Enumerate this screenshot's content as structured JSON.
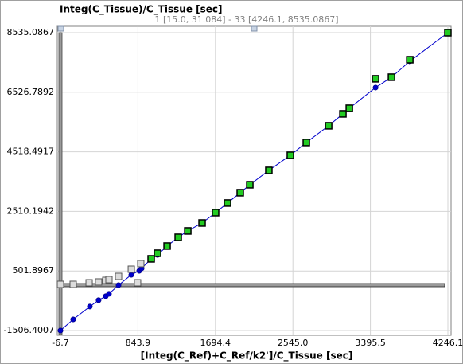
{
  "chart_data": {
    "type": "scatter",
    "title": "Integ(C_Tissue)/C_Tissue [sec]",
    "subtitle": "1 [15.0, 31.084] - 33 [4246.1, 8535.0867]",
    "x_label": "[Integ(C_Ref)+C_Ref/k2']/C_Tissue [sec]",
    "xlim": [
      -6.7,
      4246.1
    ],
    "ylim": [
      -1506.4007,
      8535.0867
    ],
    "xticks": [
      -6.7,
      843.9,
      1694.4,
      {
        "value": 2545.0,
        "label": "2545.0"
      },
      3395.5,
      4246.1
    ],
    "yticks": [
      -1506.4007,
      501.8967,
      2510.1942,
      4518.4917,
      6526.7892,
      8535.0867
    ],
    "grid": true,
    "series": [
      {
        "color": "#0000cc",
        "marker": "circle",
        "line": true,
        "x": [
          -6.7,
          133,
          316,
          412,
          491,
          526,
          631,
          771,
          858,
          884,
          989,
          1059,
          1164,
          1286,
          1391,
          1548,
          1696,
          1827,
          1967,
          2072,
          2281,
          2517,
          2692,
          2937,
          3094,
          3164,
          3452,
          3627,
          3828,
          4246.1
        ],
        "y": [
          -1506.4,
          -1130,
          -698,
          -483,
          -349,
          -269,
          25,
          374,
          508,
          589,
          911,
          1045,
          1341,
          1636,
          1851,
          2119,
          2468,
          2791,
          3140,
          3408,
          3892,
          4402,
          4832,
          5396,
          5798,
          5986,
          6684,
          7033,
          7570,
          8535.1
        ]
      },
      {
        "color": "#22cc22",
        "marker": "square",
        "line": false,
        "x": [
          989,
          1059,
          1164,
          1286,
          1391,
          1548,
          1696,
          1827,
          1967,
          2072,
          2281,
          2517,
          2692,
          2937,
          3094,
          3164,
          3452,
          3627,
          3828,
          4246.1
        ],
        "y": [
          911,
          1099,
          1341,
          1636,
          1851,
          2119,
          2468,
          2791,
          3140,
          3408,
          3892,
          4402,
          4832,
          5396,
          5798,
          5986,
          6980,
          7033,
          7623,
          8535.1
        ]
      },
      {
        "color": "#dcdcdc",
        "marker": "square",
        "line": false,
        "x": [
          -6.7,
          133,
          308,
          412,
          491,
          526,
          631,
          771,
          875,
          840
        ],
        "y": [
          51,
          51,
          105,
          132,
          185,
          212,
          320,
          561,
          749,
          105
        ]
      }
    ]
  }
}
